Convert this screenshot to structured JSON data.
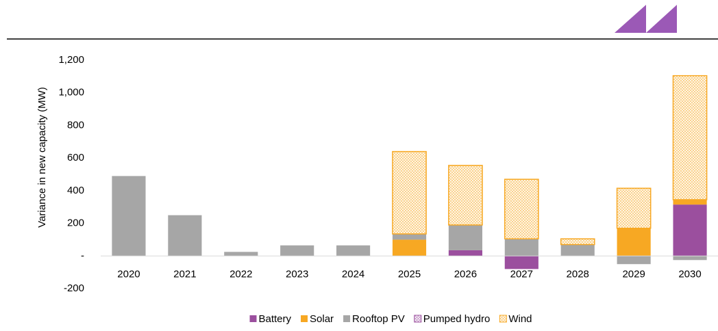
{
  "chart_data": {
    "type": "stacked_bar",
    "ylabel": "Variance in new capacity (MW)",
    "categories": [
      "2020",
      "2021",
      "2022",
      "2023",
      "2024",
      "2025",
      "2026",
      "2027",
      "2028",
      "2029",
      "2030"
    ],
    "series": [
      {
        "name": "Battery",
        "color": "#9b4f9e",
        "values": [
          0,
          0,
          0,
          0,
          0,
          0,
          35,
          -80,
          0,
          0,
          315
        ]
      },
      {
        "name": "Solar",
        "color": "#f7a823",
        "values": [
          0,
          0,
          0,
          0,
          0,
          100,
          0,
          0,
          0,
          170,
          30
        ]
      },
      {
        "name": "Rooftop PV",
        "color": "#a6a6a6",
        "values": [
          490,
          250,
          25,
          65,
          65,
          35,
          155,
          105,
          70,
          -50,
          -25
        ]
      },
      {
        "name": "Pumped hydro",
        "color": "#9b4f9e",
        "pattern": true,
        "values": [
          0,
          0,
          0,
          0,
          0,
          0,
          0,
          0,
          0,
          0,
          0
        ]
      },
      {
        "name": "Wind",
        "color": "#f7a823",
        "pattern": true,
        "values": [
          0,
          0,
          0,
          0,
          0,
          505,
          365,
          365,
          35,
          245,
          760
        ]
      }
    ],
    "ylim": [
      -200,
      1200
    ],
    "yticks": [
      {
        "value": -200,
        "label": "-200"
      },
      {
        "value": 0,
        "label": "-"
      },
      200,
      400,
      600,
      800,
      {
        "value": 1000,
        "label": "1,000"
      },
      {
        "value": 1200,
        "label": "1,200"
      }
    ],
    "grid": false,
    "legend": "bottom"
  }
}
